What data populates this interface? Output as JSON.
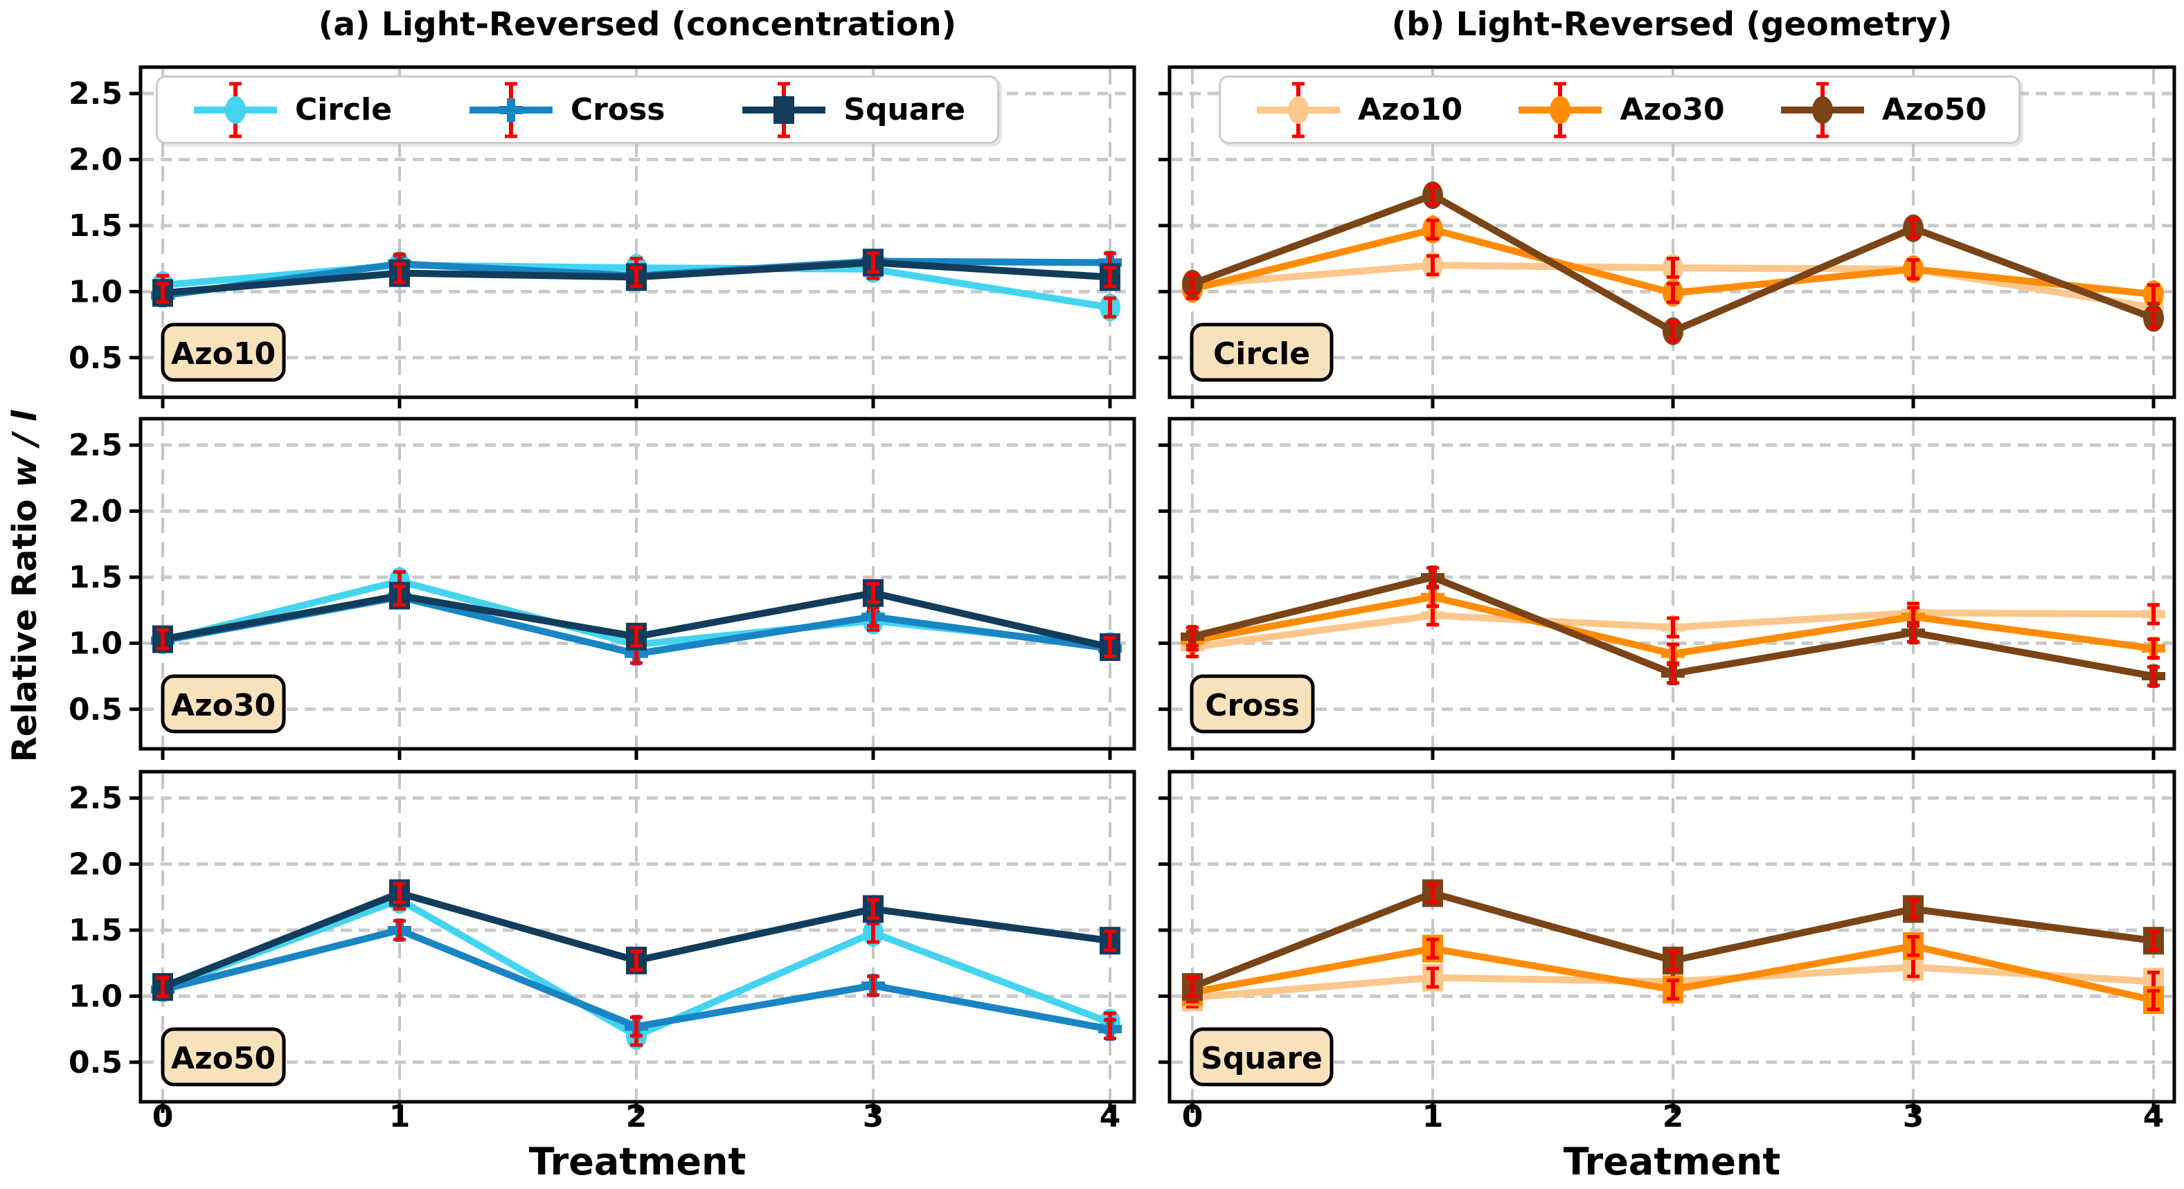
{
  "figure": {
    "titles": {
      "a": "(a) Light-Reversed (concentration)",
      "b": "(b) Light-Reversed (geometry)"
    },
    "x_axis": {
      "label": "Treatment",
      "tick_labels": [
        "0",
        "1",
        "2",
        "3",
        "4"
      ]
    },
    "y_axis": {
      "label_prefix": "Relative Ratio",
      "label_math": "w / l",
      "tick_labels": [
        "0.5",
        "1.0",
        "1.5",
        "2.0",
        "2.5"
      ]
    }
  },
  "chart_data": {
    "type": "line",
    "x": [
      0,
      1,
      2,
      3,
      4
    ],
    "xlabel": "Treatment",
    "ylabel": "Relative Ratio w/l",
    "ylim": [
      0.2,
      2.7
    ],
    "yticks": [
      0.5,
      1.0,
      1.5,
      2.0,
      2.5
    ],
    "grid": true,
    "error_bar": 0.07,
    "columns": [
      {
        "id": "a",
        "title": "(a) Light-Reversed (concentration)",
        "series": [
          "Circle",
          "Cross",
          "Square"
        ],
        "rows": [
          "Azo10",
          "Azo30",
          "Azo50"
        ],
        "legend_position": "top"
      },
      {
        "id": "b",
        "title": "(b) Light-Reversed (geometry)",
        "series": [
          "Azo10",
          "Azo30",
          "Azo50"
        ],
        "rows": [
          "Circle",
          "Cross",
          "Square"
        ],
        "legend_position": "top"
      }
    ],
    "values": {
      "Azo10": {
        "Circle": [
          1.05,
          1.2,
          1.18,
          1.17,
          0.88
        ],
        "Cross": [
          0.97,
          1.21,
          1.12,
          1.23,
          1.22
        ],
        "Square": [
          0.99,
          1.14,
          1.11,
          1.22,
          1.11
        ]
      },
      "Azo30": {
        "Circle": [
          1.02,
          1.47,
          0.99,
          1.17,
          0.98
        ],
        "Cross": [
          1.02,
          1.35,
          0.92,
          1.2,
          0.96
        ],
        "Square": [
          1.03,
          1.36,
          1.05,
          1.38,
          0.97
        ]
      },
      "Azo50": {
        "Circle": [
          1.06,
          1.73,
          0.7,
          1.48,
          0.8
        ],
        "Cross": [
          1.05,
          1.5,
          0.77,
          1.08,
          0.75
        ],
        "Square": [
          1.07,
          1.78,
          1.27,
          1.66,
          1.42
        ]
      }
    },
    "colors": {
      "Circle": "#45D4F0",
      "Cross": "#1985C3",
      "Square": "#123C5B",
      "Azo10": "#FBC78C",
      "Azo30": "#FF8C06",
      "Azo50": "#7A4416",
      "error": "#F40000",
      "row_label_fill": "#F8E2BC",
      "grid": "#C9C9C9"
    },
    "markers": {
      "Circle": "circle",
      "Cross": "plus",
      "Square": "square"
    }
  }
}
